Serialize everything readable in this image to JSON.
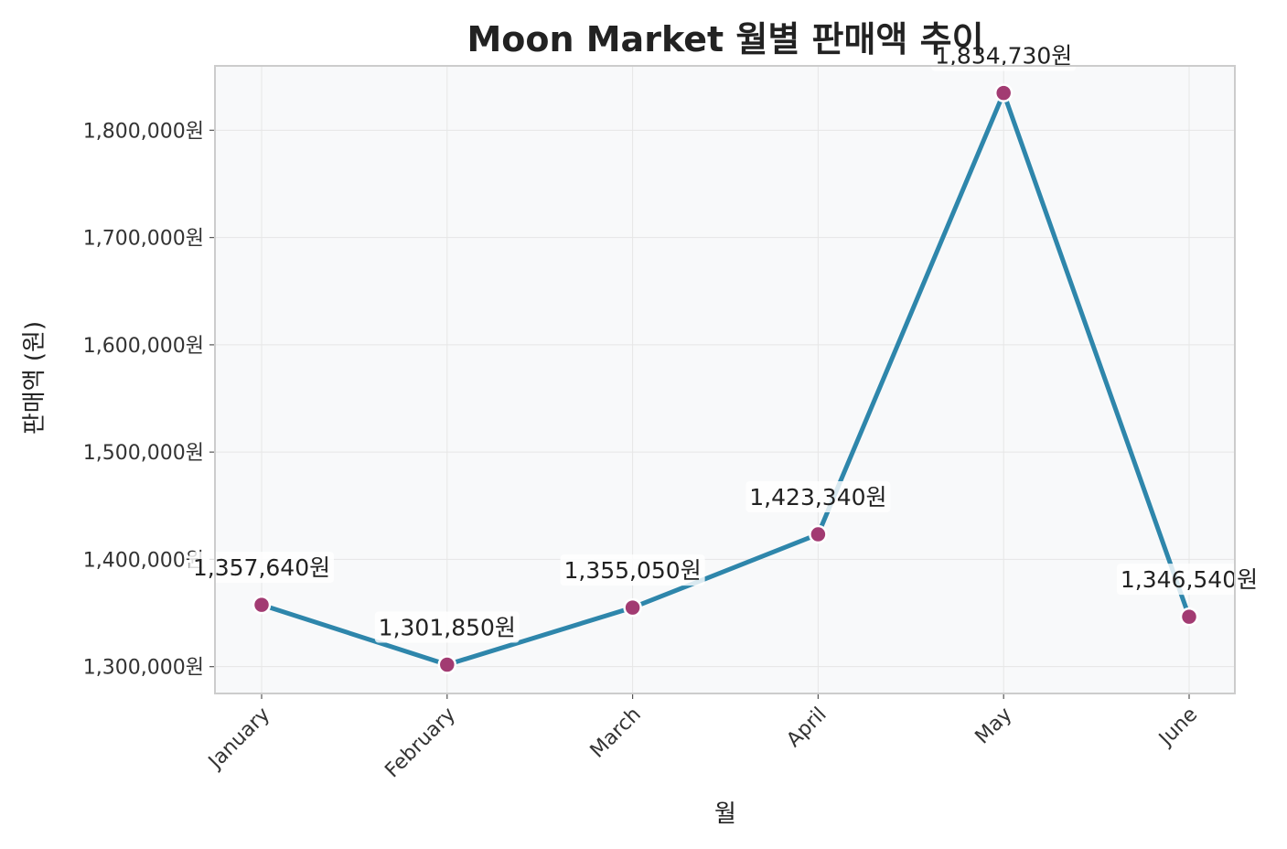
{
  "chart_data": {
    "type": "line",
    "title": "Moon Market 월별 판매액 추이",
    "xlabel": "월",
    "ylabel": "판매액 (원)",
    "categories": [
      "January",
      "February",
      "March",
      "April",
      "May",
      "June"
    ],
    "series": [
      {
        "values": [
          1357640,
          1301850,
          1355050,
          1423340,
          1834730,
          1346540
        ]
      }
    ],
    "data_labels": [
      "1,357,640원",
      "1,301,850원",
      "1,355,050원",
      "1,423,340원",
      "1,834,730원",
      "1,346,540원"
    ],
    "yticks": [
      1300000,
      1400000,
      1500000,
      1600000,
      1700000,
      1800000
    ],
    "ytick_labels": [
      "1,300,000원",
      "1,400,000원",
      "1,500,000원",
      "1,600,000원",
      "1,700,000원",
      "1,800,000원"
    ],
    "ylim": [
      1275000,
      1860000
    ],
    "grid": true,
    "legend": "none",
    "colors": {
      "line": "#2e86ab",
      "marker": "#a23b72",
      "plot_bg": "#f8f9fa",
      "grid": "#e6e6e6"
    }
  }
}
